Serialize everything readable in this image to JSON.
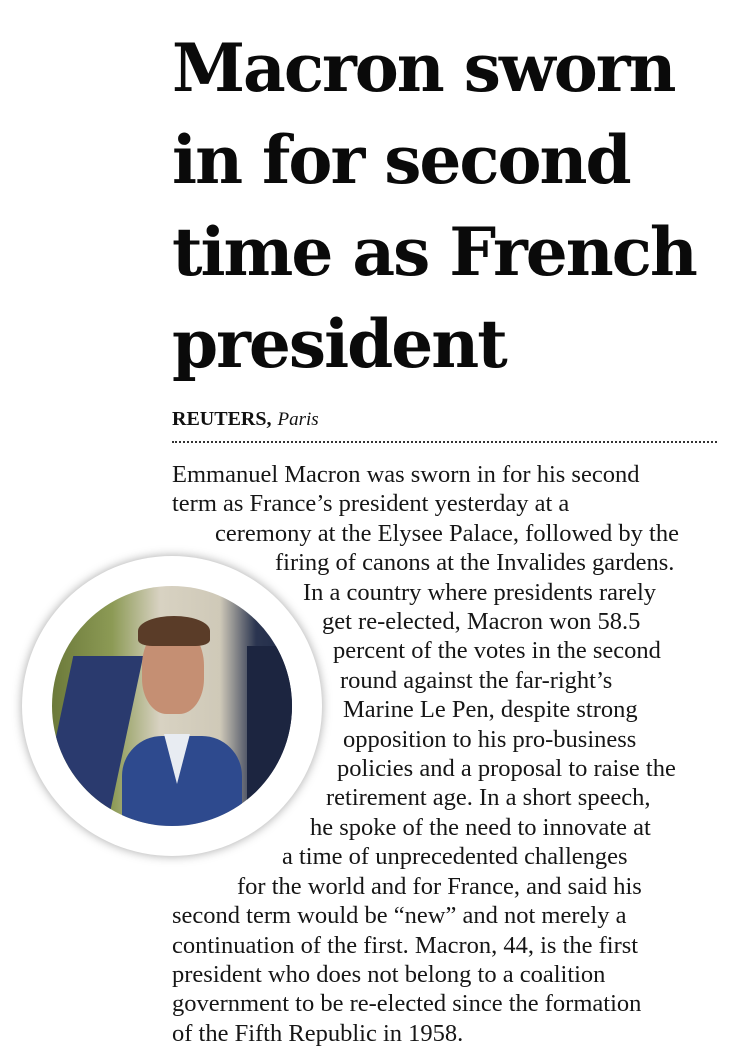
{
  "headline": {
    "lines": [
      "Macron sworn",
      "in for second",
      "time as French",
      "president"
    ]
  },
  "byline": {
    "agency": "REUTERS,",
    "location": "Paris"
  },
  "photo": {
    "description_icon": "portrait-photo"
  },
  "body": {
    "lines": [
      "Emmanuel Macron was sworn in for his second",
      "term as France’s president yesterday at a",
      "ceremony at the Elysee Palace, followed by the",
      "firing of canons at the Invalides gardens.",
      "In a country where presidents rarely",
      "get re-elected, Macron won 58.5",
      "percent of the votes in the second",
      "round against the far-right’s",
      "Marine Le Pen, despite strong",
      "opposition to his pro-business",
      "policies and a proposal to raise the",
      "retirement age. In a short speech,",
      "he spoke of the need to innovate at",
      "a time of unprecedented challenges",
      "for the world and for France, and said his",
      "second term would be “new” and not merely a",
      "continuation of the first. Macron, 44, is the first",
      "president who does not belong to a coalition",
      "government to be re-elected since the formation",
      "of the Fifth Republic in 1958."
    ]
  }
}
